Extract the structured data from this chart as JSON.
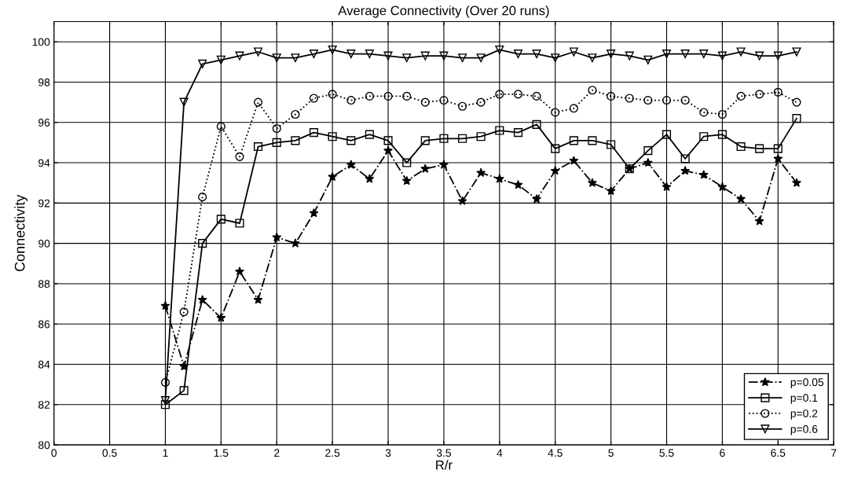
{
  "chart_data": {
    "type": "line",
    "title": "Average Connectivity (Over 20 runs)",
    "xlabel": "R/r",
    "ylabel": "Connectivity",
    "x": [
      1,
      1.167,
      1.333,
      1.5,
      1.667,
      1.833,
      2,
      2.167,
      2.333,
      2.5,
      2.667,
      2.833,
      3,
      3.167,
      3.333,
      3.5,
      3.667,
      3.833,
      4,
      4.167,
      4.333,
      4.5,
      4.667,
      4.833,
      5,
      5.167,
      5.333,
      5.5,
      5.667,
      5.833,
      6,
      6.167,
      6.333,
      6.5,
      6.667
    ],
    "series": [
      {
        "name": "p=0.05",
        "color": "#000000",
        "marker": "star",
        "line_style": "dashdot",
        "values": [
          86.9,
          83.9,
          87.2,
          86.3,
          88.6,
          87.2,
          90.3,
          90.0,
          91.5,
          93.3,
          93.9,
          93.2,
          94.6,
          93.1,
          93.7,
          93.9,
          92.1,
          93.5,
          93.2,
          92.9,
          92.2,
          93.6,
          94.1,
          93.0,
          92.6,
          93.7,
          94.0,
          92.8,
          93.6,
          93.4,
          92.8,
          92.2,
          91.1,
          94.2,
          93.0
        ]
      },
      {
        "name": "p=0.1",
        "color": "#000000",
        "marker": "square",
        "line_style": "solid",
        "values": [
          82.0,
          82.7,
          90.0,
          91.2,
          91.0,
          94.8,
          95.0,
          95.1,
          95.5,
          95.3,
          95.1,
          95.4,
          95.1,
          94.0,
          95.1,
          95.2,
          95.2,
          95.3,
          95.6,
          95.5,
          95.9,
          94.7,
          95.1,
          95.1,
          94.9,
          93.7,
          94.6,
          95.4,
          94.2,
          95.3,
          95.4,
          94.8,
          94.7,
          94.7,
          96.2
        ]
      },
      {
        "name": "p=0.2",
        "color": "#000000",
        "marker": "circle",
        "line_style": "dotted",
        "values": [
          83.1,
          86.6,
          92.3,
          95.8,
          94.3,
          97.0,
          95.7,
          96.4,
          97.2,
          97.4,
          97.1,
          97.3,
          97.3,
          97.3,
          97.0,
          97.1,
          96.8,
          97.0,
          97.4,
          97.4,
          97.3,
          96.5,
          96.7,
          97.6,
          97.3,
          97.2,
          97.1,
          97.1,
          97.1,
          96.5,
          96.4,
          97.3,
          97.4,
          97.5,
          97.0
        ]
      },
      {
        "name": "p=0.6",
        "color": "#000000",
        "marker": "triangle",
        "line_style": "solid",
        "values": [
          82.2,
          97.0,
          98.9,
          99.1,
          99.3,
          99.5,
          99.2,
          99.2,
          99.4,
          99.6,
          99.4,
          99.4,
          99.3,
          99.2,
          99.3,
          99.3,
          99.2,
          99.2,
          99.6,
          99.4,
          99.4,
          99.2,
          99.5,
          99.2,
          99.4,
          99.3,
          99.1,
          99.4,
          99.4,
          99.4,
          99.3,
          99.5,
          99.3,
          99.3,
          99.5
        ]
      }
    ],
    "xlim": [
      0,
      7
    ],
    "xticks": [
      0,
      0.5,
      1,
      1.5,
      2,
      2.5,
      3,
      3.5,
      4,
      4.5,
      5,
      5.5,
      6,
      6.5,
      7
    ],
    "ylim": [
      80,
      101
    ],
    "yticks": [
      80,
      82,
      84,
      86,
      88,
      90,
      92,
      94,
      96,
      98,
      100
    ],
    "grid": true,
    "legend": "bottom right"
  }
}
